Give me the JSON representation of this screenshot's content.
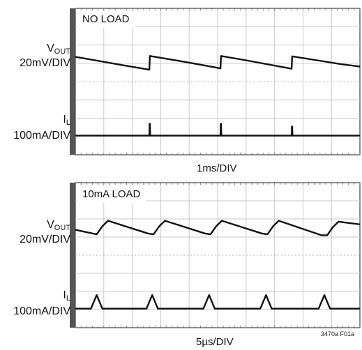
{
  "chart_data": [
    {
      "type": "line",
      "title": "NO LOAD",
      "timebase": "1ms/DIV",
      "divisions_x": 10,
      "divisions_y": 8,
      "series": [
        {
          "name_main": "V",
          "name_sub": "OUT",
          "scale": "20mV/DIV",
          "color": "#111111",
          "x": [
            0,
            0.2,
            1.0,
            1.8,
            2.6,
            2.62,
            3.5,
            4.3,
            5.1,
            5.12,
            6.0,
            6.8,
            7.6,
            7.62,
            8.5,
            9.3,
            10
          ],
          "y": [
            5.35,
            5.3,
            5.08,
            4.86,
            4.65,
            5.4,
            5.17,
            4.95,
            4.72,
            5.4,
            5.16,
            4.93,
            4.7,
            5.38,
            5.16,
            4.96,
            4.82
          ]
        },
        {
          "name_main": "I",
          "name_sub": "L",
          "scale": "100mA/DIV",
          "color": "#111111",
          "x": [
            0,
            2.6,
            2.61,
            2.62,
            2.63,
            5.1,
            5.11,
            5.12,
            5.13,
            7.6,
            7.61,
            7.62,
            7.63,
            10
          ],
          "y": [
            1.05,
            1.05,
            1.7,
            1.7,
            1.05,
            1.05,
            1.7,
            1.7,
            1.05,
            1.05,
            1.55,
            1.55,
            1.05,
            1.05
          ]
        }
      ]
    },
    {
      "type": "line",
      "title": "10mA LOAD",
      "timebase": "5µs/DIV",
      "divisions_x": 10,
      "divisions_y": 8,
      "series": [
        {
          "name_main": "V",
          "name_sub": "OUT",
          "scale": "20mV/DIV",
          "color": "#111111",
          "x": [
            0,
            0.6,
            0.75,
            0.95,
            1.15,
            2.55,
            2.75,
            2.95,
            3.15,
            4.55,
            4.75,
            4.95,
            5.15,
            6.55,
            6.75,
            6.95,
            7.15,
            8.65,
            8.85,
            9.05,
            9.25,
            10
          ],
          "y": [
            5.4,
            5.2,
            5.15,
            5.6,
            5.9,
            5.2,
            5.15,
            5.6,
            5.9,
            5.2,
            5.15,
            5.6,
            5.9,
            5.2,
            5.15,
            5.6,
            5.9,
            5.1,
            5.1,
            5.55,
            5.85,
            5.7
          ],
          "sampled_note": "sawtooth ripple, ~5 cycles visible"
        },
        {
          "name_main": "I",
          "name_sub": "L",
          "scale": "100mA/DIV",
          "color": "#111111",
          "x": [
            0,
            0.55,
            0.75,
            0.95,
            2.5,
            2.7,
            2.9,
            4.5,
            4.7,
            4.9,
            6.5,
            6.7,
            6.9,
            8.55,
            8.75,
            8.95,
            10
          ],
          "y": [
            1.05,
            1.05,
            1.8,
            1.05,
            1.05,
            1.8,
            1.05,
            1.05,
            1.8,
            1.05,
            1.05,
            1.8,
            1.05,
            1.05,
            1.8,
            1.05,
            1.05
          ]
        }
      ]
    }
  ],
  "footnote": "3470a F01a"
}
